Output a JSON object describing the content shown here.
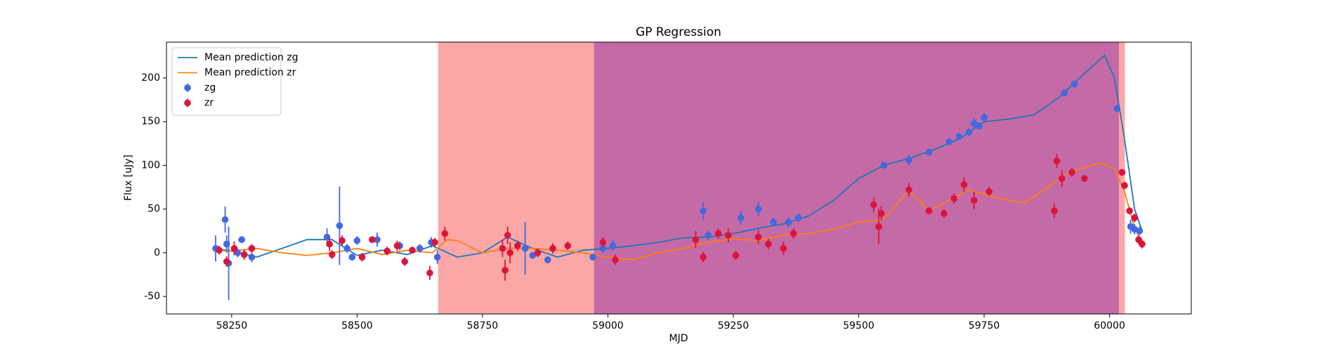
{
  "chart_data": {
    "type": "errorbar",
    "title": "GP Regression",
    "x_label": "MJD",
    "y_label": "Flux [uJy]",
    "xlim": [
      58120,
      60163
    ],
    "ylim": [
      -70,
      241
    ],
    "xticks": [
      58250,
      58500,
      58750,
      59000,
      59250,
      59500,
      59750,
      60000
    ],
    "yticks": [
      -50,
      0,
      50,
      100,
      150,
      200
    ],
    "grid": false,
    "legend": "upper left",
    "spans": [
      {
        "xlim": [
          58662,
          60030
        ],
        "color": "#fca7a7"
      },
      {
        "xlim": [
          58973,
          60018
        ],
        "color": "#c46aa6"
      }
    ],
    "series": [
      {
        "name": "Mean prediction zg",
        "kind": "line",
        "color": "#1f77b4",
        "x": [
          58215,
          58250,
          58300,
          58350,
          58400,
          58450,
          58500,
          58550,
          58600,
          58650,
          58700,
          58750,
          58800,
          58850,
          58900,
          58950,
          59000,
          59050,
          59100,
          59150,
          59200,
          59250,
          59300,
          59350,
          59400,
          59450,
          59500,
          59550,
          59600,
          59650,
          59700,
          59750,
          59800,
          59850,
          59900,
          59950,
          59990,
          60010,
          60030,
          60050,
          60065
        ],
        "values": [
          5,
          2,
          -5,
          5,
          15,
          15,
          -3,
          3,
          -2,
          8,
          -5,
          0,
          18,
          5,
          -5,
          3,
          5,
          8,
          12,
          17,
          18,
          22,
          28,
          33,
          42,
          60,
          85,
          100,
          108,
          118,
          130,
          150,
          153,
          158,
          178,
          205,
          226,
          200,
          130,
          50,
          25
        ]
      },
      {
        "name": "Mean prediction zr",
        "kind": "line",
        "color": "#ff7f0e",
        "x": [
          58215,
          58250,
          58300,
          58350,
          58400,
          58450,
          58500,
          58550,
          58600,
          58650,
          58680,
          58700,
          58750,
          58800,
          58850,
          58900,
          58950,
          59000,
          59050,
          59100,
          59150,
          59200,
          59250,
          59300,
          59350,
          59400,
          59450,
          59500,
          59550,
          59600,
          59640,
          59680,
          59720,
          59760,
          59800,
          59830,
          59870,
          59920,
          59980,
          60010,
          60030,
          60050,
          60065
        ],
        "values": [
          3,
          2,
          5,
          0,
          -3,
          0,
          5,
          -2,
          3,
          0,
          15,
          14,
          0,
          5,
          5,
          3,
          0,
          -5,
          -8,
          0,
          5,
          12,
          16,
          14,
          20,
          22,
          27,
          35,
          38,
          72,
          48,
          60,
          72,
          65,
          60,
          57,
          72,
          92,
          103,
          96,
          70,
          28,
          12
        ]
      },
      {
        "name": "zg",
        "kind": "errorbar",
        "color": "#4169e1",
        "x": [
          58218,
          58237,
          58240,
          58244,
          58262,
          58270,
          58290,
          58440,
          58465,
          58480,
          58490,
          58500,
          58540,
          58585,
          58625,
          58648,
          58660,
          58835,
          58850,
          58880,
          58970,
          58990,
          59010,
          59190,
          59200,
          59265,
          59300,
          59330,
          59360,
          59380,
          59550,
          59600,
          59640,
          59680,
          59700,
          59720,
          59730,
          59740,
          59750,
          59910,
          59930,
          60015,
          60042,
          60050,
          60060
        ],
        "values": [
          5,
          38,
          10,
          -12,
          0,
          15,
          -5,
          18,
          31,
          5,
          -5,
          14,
          15,
          8,
          5,
          12,
          -5,
          5,
          -3,
          -8,
          -5,
          5,
          8,
          48,
          20,
          40,
          50,
          35,
          35,
          40,
          100,
          106,
          115,
          127,
          133,
          138,
          148,
          145,
          155,
          183,
          193,
          165,
          30,
          27,
          25
        ],
        "errors": [
          15,
          15,
          10,
          42,
          5,
          4,
          6,
          10,
          45,
          5,
          4,
          5,
          8,
          5,
          5,
          6,
          8,
          30,
          4,
          4,
          4,
          5,
          6,
          10,
          5,
          8,
          8,
          5,
          6,
          5,
          3,
          6,
          3,
          3,
          4,
          5,
          6,
          4,
          5,
          4,
          4,
          4,
          8,
          6,
          5
        ]
      },
      {
        "name": "zr",
        "kind": "errorbar",
        "color": "#dc143c",
        "x": [
          58225,
          58240,
          58255,
          58275,
          58290,
          58445,
          58450,
          58470,
          58510,
          58530,
          58560,
          58580,
          58595,
          58610,
          58645,
          58655,
          58675,
          58790,
          58795,
          58800,
          58805,
          58820,
          58860,
          58890,
          58920,
          58990,
          59015,
          59175,
          59190,
          59220,
          59240,
          59255,
          59300,
          59320,
          59350,
          59370,
          59530,
          59540,
          59545,
          59600,
          59640,
          59670,
          59690,
          59710,
          59730,
          59760,
          59890,
          59895,
          59905,
          59925,
          59950,
          60025,
          60030,
          60040,
          60050,
          60058,
          60065
        ],
        "values": [
          3,
          -10,
          5,
          -2,
          5,
          10,
          -2,
          14,
          -5,
          15,
          2,
          8,
          -10,
          3,
          -23,
          12,
          22,
          5,
          -20,
          20,
          0,
          8,
          0,
          5,
          8,
          12,
          -8,
          15,
          -5,
          22,
          20,
          -3,
          18,
          10,
          5,
          22,
          55,
          30,
          45,
          72,
          48,
          45,
          62,
          78,
          60,
          70,
          48,
          105,
          85,
          92,
          85,
          92,
          77,
          48,
          40,
          15,
          10
        ],
        "errors": [
          5,
          6,
          8,
          6,
          5,
          8,
          5,
          6,
          5,
          3,
          5,
          6,
          5,
          4,
          8,
          5,
          8,
          10,
          12,
          10,
          12,
          6,
          5,
          6,
          5,
          6,
          6,
          10,
          6,
          6,
          8,
          5,
          8,
          6,
          8,
          6,
          8,
          20,
          8,
          8,
          4,
          5,
          6,
          8,
          10,
          5,
          8,
          8,
          10,
          5,
          4,
          4,
          4,
          4,
          5,
          5,
          5
        ]
      }
    ]
  }
}
